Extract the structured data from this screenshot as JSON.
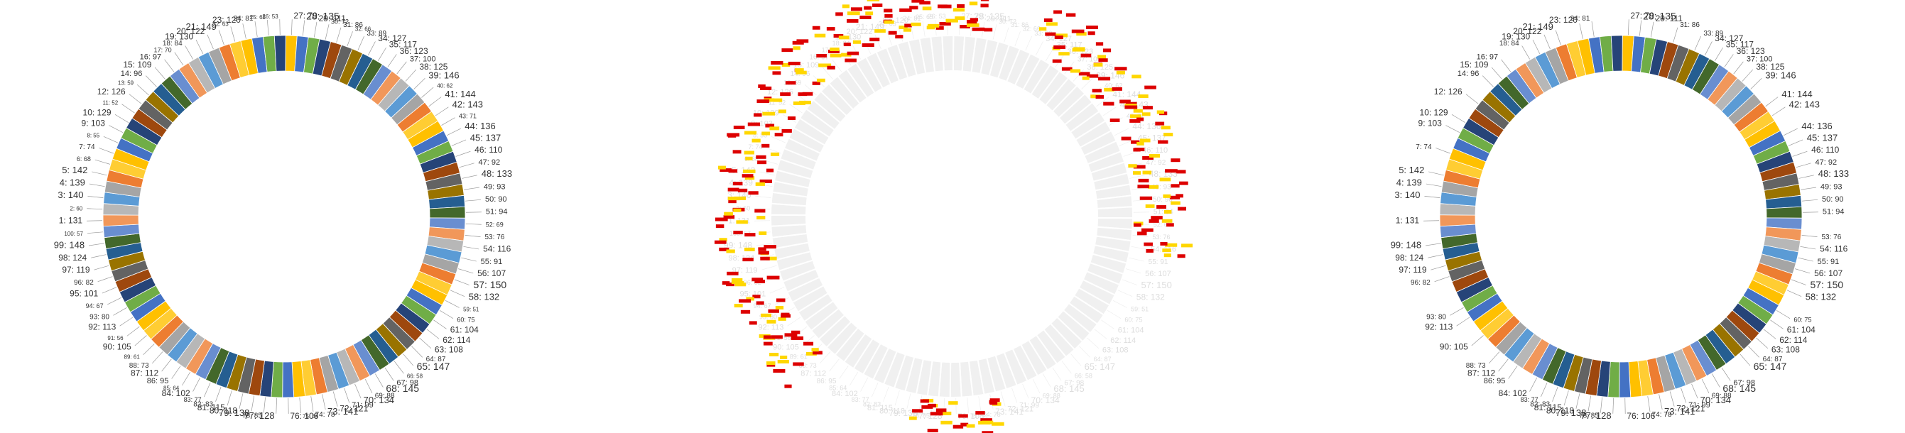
{
  "chart_data": [
    {
      "type": "pie",
      "variant": "donut",
      "label_format": "{category}: {value}",
      "categories": [
        "27",
        "28",
        "29",
        "30",
        "31",
        "32",
        "33",
        "34",
        "35",
        "36",
        "37",
        "38",
        "39",
        "40",
        "41",
        "42",
        "43",
        "44",
        "45",
        "46",
        "47",
        "48",
        "49",
        "50",
        "51",
        "52",
        "53",
        "54",
        "55",
        "56",
        "57",
        "58",
        "59",
        "60",
        "61",
        "62",
        "63",
        "64",
        "65",
        "66",
        "67",
        "68",
        "69",
        "70",
        "71",
        "72",
        "73",
        "74",
        "75",
        "76",
        "77",
        "78",
        "79",
        "80",
        "81",
        "82",
        "83",
        "84",
        "85",
        "86",
        "87",
        "88",
        "89",
        "90",
        "91",
        "92",
        "93",
        "94",
        "95",
        "96",
        "97",
        "98",
        "99",
        "100",
        "1",
        "2",
        "3",
        "4",
        "5",
        "6",
        "7",
        "8",
        "9",
        "10",
        "11",
        "12",
        "13",
        "14",
        "15",
        "16",
        "17",
        "18",
        "19",
        "20",
        "21",
        "22",
        "23",
        "24",
        "25",
        "26"
      ],
      "values": [
        79,
        135,
        111,
        72,
        86,
        66,
        89,
        127,
        117,
        123,
        100,
        125,
        146,
        62,
        144,
        143,
        71,
        136,
        137,
        110,
        92,
        133,
        93,
        90,
        94,
        69,
        76,
        116,
        91,
        107,
        150,
        132,
        51,
        75,
        104,
        114,
        108,
        87,
        147,
        58,
        98,
        145,
        88,
        134,
        99,
        121,
        141,
        78,
        54,
        106,
        128,
        85,
        138,
        118,
        115,
        83,
        77,
        102,
        64,
        95,
        112,
        73,
        61,
        105,
        56,
        113,
        80,
        67,
        101,
        82,
        119,
        124,
        148,
        57,
        131,
        60,
        140,
        139,
        142,
        68,
        74,
        55,
        103,
        129,
        52,
        126,
        59,
        96,
        109,
        97,
        70,
        84,
        130,
        122,
        149,
        63,
        120,
        81,
        65,
        53
      ],
      "label_sizes": [
        12,
        14,
        12,
        9,
        10,
        8,
        10,
        12,
        12,
        12,
        11,
        12,
        13,
        8,
        13,
        13,
        9,
        13,
        13,
        12,
        11,
        13,
        11,
        11,
        11,
        9,
        10,
        12,
        11,
        12,
        14,
        13,
        8,
        9,
        12,
        12,
        12,
        10,
        14,
        8,
        11,
        14,
        10,
        13,
        11,
        12,
        13,
        10,
        8,
        12,
        13,
        10,
        13,
        12,
        12,
        10,
        9,
        12,
        8,
        11,
        12,
        10,
        8,
        12,
        8,
        12,
        10,
        9,
        12,
        10,
        12,
        12,
        13,
        8,
        12,
        8,
        13,
        13,
        13,
        9,
        10,
        8,
        12,
        12,
        8,
        12,
        8,
        11,
        12,
        11,
        9,
        10,
        12,
        12,
        13,
        8,
        12,
        10,
        8,
        8
      ]
    },
    {
      "type": "pie",
      "variant": "donut",
      "style": "ghosted-labels"
    },
    {
      "type": "pie",
      "variant": "donut",
      "label_format": "{category}: {value}",
      "uses_values_of_chart": 0,
      "visible_labels": [
        "24",
        "27",
        "28",
        "29",
        "31",
        "33",
        "34",
        "35",
        "36",
        "37",
        "38",
        "39",
        "41",
        "42",
        "44",
        "45",
        "46",
        "47",
        "48",
        "49",
        "50",
        "51",
        "53",
        "54",
        "55",
        "56",
        "57",
        "58",
        "60",
        "61",
        "62",
        "63",
        "64",
        "65",
        "67",
        "68",
        "69",
        "70",
        "71",
        "72",
        "73",
        "74",
        "76",
        "77",
        "78",
        "79",
        "80",
        "81",
        "82",
        "83",
        "84",
        "86",
        "87",
        "88",
        "90",
        "92",
        "93",
        "96",
        "97",
        "98",
        "99",
        "1",
        "3",
        "4",
        "5",
        "7",
        "9",
        "10",
        "12",
        "14",
        "15",
        "16",
        "18",
        "19",
        "20",
        "21",
        "23"
      ]
    }
  ],
  "colors": {
    "palette": [
      "#FFC000",
      "#4472C4",
      "#70AD47",
      "#264478",
      "#9E480E",
      "#636363",
      "#997300",
      "#255E91",
      "#43682B",
      "#698ED0",
      "#F1975A",
      "#B7B7B7",
      "#5B9BD5",
      "#A5A5A5",
      "#ED7D31",
      "#FFCD33"
    ],
    "label_text": "#333333",
    "leader_line": "#999999",
    "ghost_ring": "#f0f0f0",
    "ghost_ring_stroke": "#ffffff",
    "ghost_text": "#dddddd",
    "red_glyph": "#dd0000",
    "yellow_glyph": "#ffd700"
  }
}
